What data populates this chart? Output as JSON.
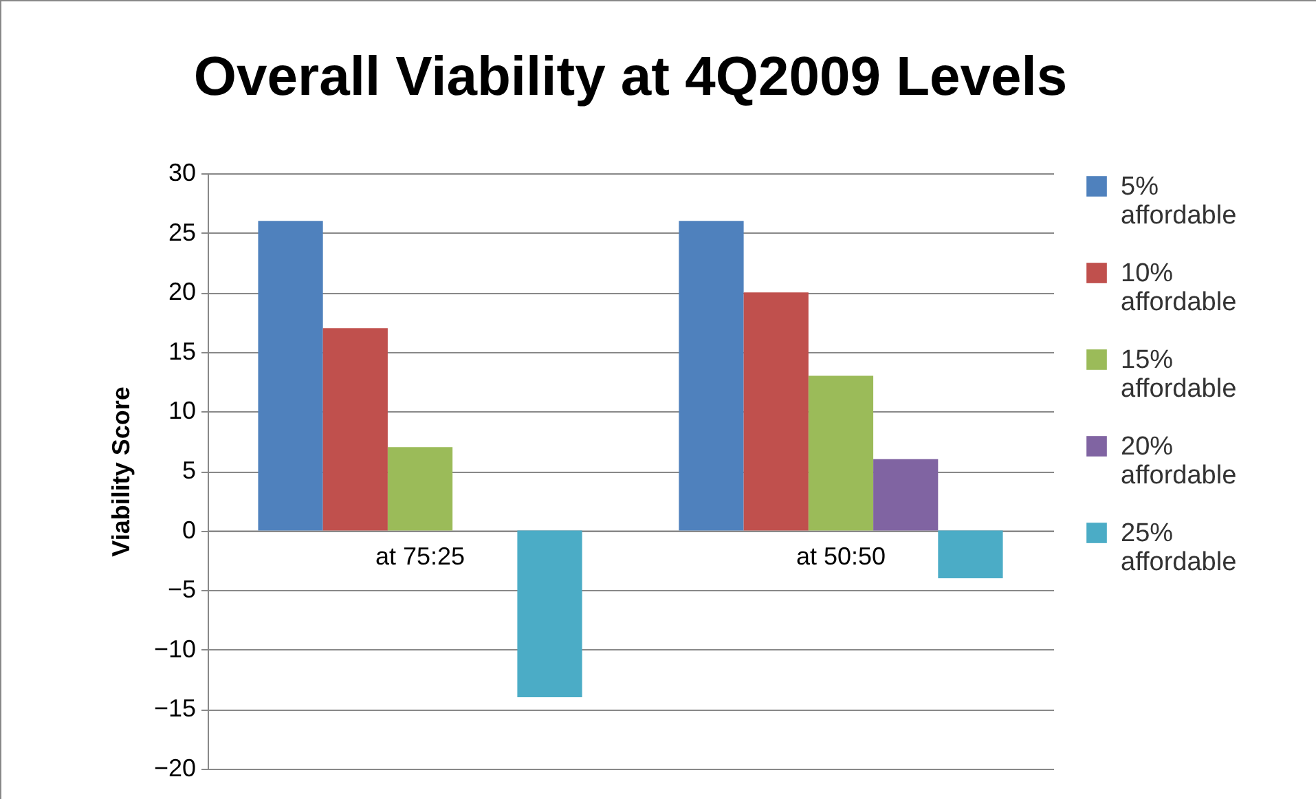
{
  "chart_data": {
    "type": "bar",
    "title": "Overall Viability at 4Q2009 Levels",
    "ylabel": "Viability Score",
    "categories": [
      "at 75:25",
      "at 50:50"
    ],
    "series": [
      {
        "name": "5% affordable",
        "color": "#4f81bd",
        "values": [
          26,
          26
        ]
      },
      {
        "name": "10% affordable",
        "color": "#c0504d",
        "values": [
          17,
          20
        ]
      },
      {
        "name": "15% affordable",
        "color": "#9bbb59",
        "values": [
          7,
          13
        ]
      },
      {
        "name": "20% affordable",
        "color": "#8064a2",
        "values": [
          null,
          6
        ]
      },
      {
        "name": "25% affordable",
        "color": "#4bacc6",
        "values": [
          -14,
          -4
        ]
      }
    ],
    "ylim": [
      -20,
      30
    ],
    "yticks": [
      -20,
      -15,
      -10,
      -5,
      0,
      5,
      10,
      15,
      20,
      25,
      30
    ],
    "grid": "y",
    "legend": "right"
  }
}
